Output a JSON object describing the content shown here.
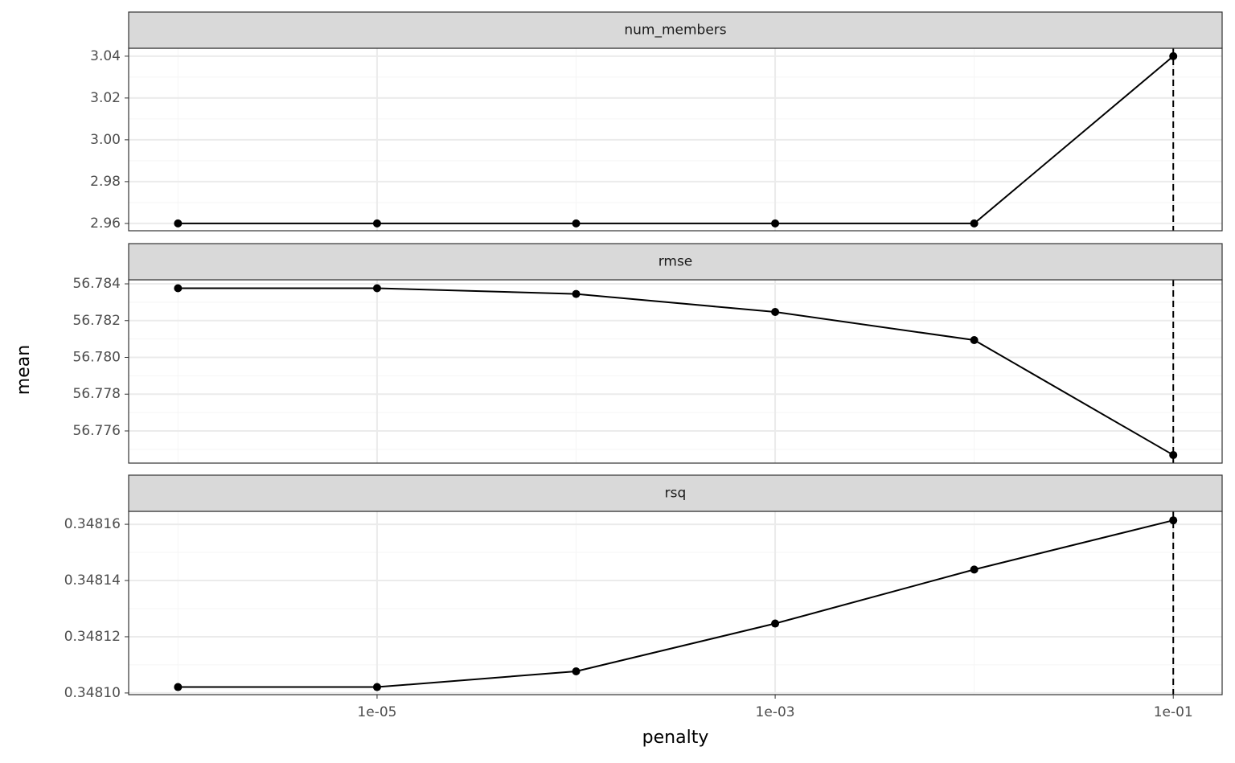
{
  "chart_data": [
    {
      "type": "line",
      "title": "num_members",
      "xscale": "log",
      "x": [
        1e-06,
        1e-05,
        0.0001,
        0.001,
        0.01,
        0.1
      ],
      "values": [
        2.96,
        2.96,
        2.96,
        2.96,
        2.96,
        3.04
      ],
      "xlim": [
        5.65e-07,
        0.176
      ],
      "xticks": [
        {
          "value": 1e-05,
          "label": "1e-05"
        },
        {
          "value": 0.001,
          "label": "1e-03"
        },
        {
          "value": 0.1,
          "label": "1e-01"
        }
      ],
      "ylim": [
        2.9565,
        3.0438
      ],
      "yticks": [
        2.96,
        2.98,
        {
          "value": 3,
          "label": "3.00"
        },
        3.02,
        3.04
      ],
      "vline": 0.1,
      "color": "#000000",
      "grid": true
    },
    {
      "type": "line",
      "title": "rmse",
      "xscale": "log",
      "ylabel": "mean",
      "x": [
        1e-06,
        1e-05,
        0.0001,
        0.001,
        0.01,
        0.1
      ],
      "values": [
        56.78376,
        56.78376,
        56.78345,
        56.78247,
        56.78094,
        56.77469
      ],
      "xlim": [
        5.65e-07,
        0.176
      ],
      "xticks": [
        {
          "value": 1e-05,
          "label": "1e-05"
        },
        {
          "value": 0.001,
          "label": "1e-03"
        },
        {
          "value": 0.1,
          "label": "1e-01"
        }
      ],
      "ylim": [
        56.77425,
        56.78422
      ],
      "yticks": [
        56.776,
        56.778,
        {
          "value": 56.78,
          "label": "56.780"
        },
        56.782,
        56.784
      ],
      "vline": 0.1,
      "color": "#000000",
      "grid": true
    },
    {
      "type": "line",
      "title": "rsq",
      "xscale": "log",
      "xlabel": "penalty",
      "x": [
        1e-06,
        1e-05,
        0.0001,
        0.001,
        0.01,
        0.1
      ],
      "values": [
        0.3481021,
        0.3481021,
        0.3481077,
        0.3481247,
        0.3481439,
        0.3481614
      ],
      "xlim": [
        5.65e-07,
        0.176
      ],
      "xticks": [
        {
          "value": 1e-05,
          "label": "1e-05"
        },
        {
          "value": 0.001,
          "label": "1e-03"
        },
        {
          "value": 0.1,
          "label": "1e-01"
        }
      ],
      "ylim": [
        0.3480994,
        0.3481646
      ],
      "yticks": [
        {
          "value": 0.3481,
          "label": "0.34810"
        },
        0.34812,
        0.34814,
        0.34816
      ],
      "vline": 0.1,
      "color": "#000000",
      "grid": true
    }
  ]
}
